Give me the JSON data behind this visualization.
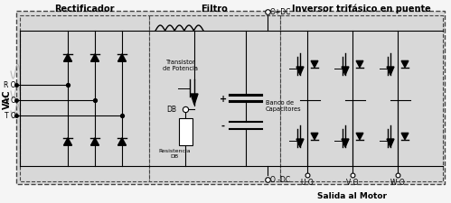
{
  "title_rectificador": "Rectificador",
  "title_filtro": "Filtro",
  "title_inversor": "Inversor trifásico en puente",
  "label_vac": "VAC",
  "label_r": "R O",
  "label_s": "S O",
  "label_t": "T O",
  "label_plus_dc": "O+DC",
  "label_minus_dc": "O -DC",
  "label_transistor": "Transistor\nde Potencia",
  "label_db": "DB",
  "label_resistencia": "Resistencia\nDB",
  "label_banco": "Banco de\nCapacitores",
  "label_u": "U O",
  "label_v": "V O",
  "label_w": "W O",
  "label_salida": "Salida al Motor",
  "label_plus": "+",
  "label_minus": "-",
  "bg_gray": "#d8d8d8",
  "line_color": "#000000",
  "dashed_color": "#444444",
  "fig_bg": "#f5f5f5"
}
